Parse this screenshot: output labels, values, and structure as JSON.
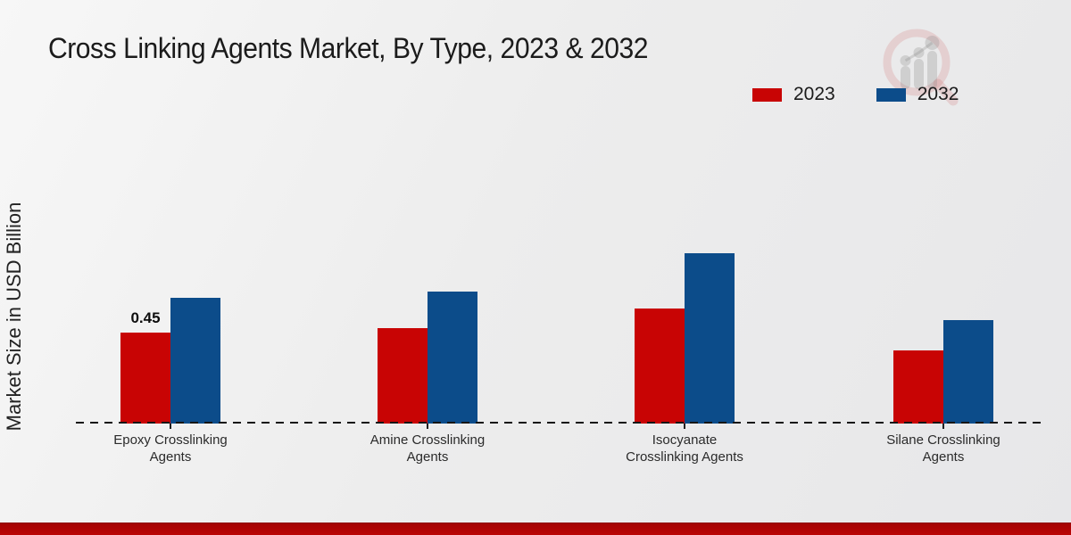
{
  "title": "Cross Linking Agents Market, By Type, 2023 & 2032",
  "colors": {
    "series_2023": "#c80404",
    "series_2032": "#0c4c8a",
    "footer_strip": "#b30404"
  },
  "chart_data": {
    "type": "bar",
    "title": "Cross Linking Agents Market, By Type, 2023 & 2032",
    "ylabel": "Market Size in USD Billion",
    "xlabel": "",
    "categories": [
      "Epoxy Crosslinking Agents",
      "Amine Crosslinking Agents",
      "Isocyanate Crosslinking Agents",
      "Silane Crosslinking Agents"
    ],
    "series": [
      {
        "name": "2023",
        "color": "#c80404",
        "values": [
          0.45,
          0.47,
          0.57,
          0.36
        ],
        "labels": [
          "0.45",
          "",
          "",
          ""
        ]
      },
      {
        "name": "2032",
        "color": "#0c4c8a",
        "values": [
          0.62,
          0.65,
          0.84,
          0.51
        ],
        "labels": [
          "",
          "",
          "",
          ""
        ]
      }
    ],
    "ylim": [
      0,
      1.0
    ],
    "grid": false,
    "axis_style": "dashed-baseline-only",
    "legend_position": "top-right"
  }
}
